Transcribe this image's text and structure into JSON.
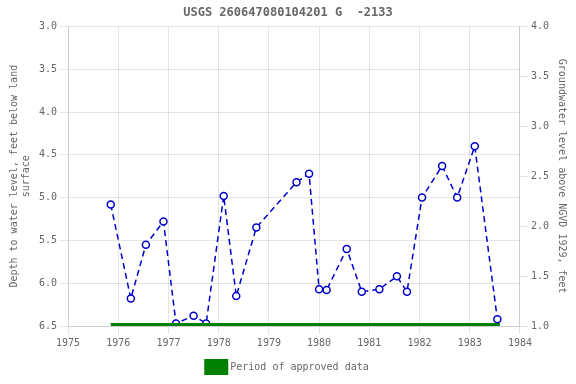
{
  "chart_data": {
    "type": "line",
    "title": "USGS 260647080104201 G  -2133",
    "y_label": "Depth to water level, feet below land\nsurface",
    "y2_label": "Groundwater level above NGVD 1929, feet",
    "x": [
      1975.85,
      1976.25,
      1976.55,
      1976.9,
      1977.15,
      1977.5,
      1977.75,
      1978.1,
      1978.35,
      1978.75,
      1979.55,
      1979.8,
      1980.0,
      1980.15,
      1980.55,
      1980.85,
      1981.2,
      1981.55,
      1981.75,
      1982.05,
      1982.45,
      1982.75,
      1983.1,
      1983.55
    ],
    "series": [
      {
        "color": "#0000cc",
        "line_style": "dashed",
        "marker": "circle",
        "values": [
          5.08,
          6.18,
          5.55,
          5.28,
          6.47,
          6.38,
          6.47,
          4.98,
          6.15,
          5.35,
          4.82,
          4.72,
          6.07,
          6.08,
          5.6,
          6.1,
          6.07,
          5.92,
          6.1,
          5.0,
          4.63,
          5.0,
          4.4,
          6.42
        ]
      }
    ],
    "period": {
      "name": "Period of approved data",
      "xstart": 1975.85,
      "xend": 1983.6,
      "y": 6.5,
      "color": "#008000"
    },
    "xlim": [
      1975,
      1984
    ],
    "xticks": [
      1975,
      1976,
      1977,
      1978,
      1979,
      1980,
      1981,
      1982,
      1983,
      1984
    ],
    "ylim": [
      6.5,
      3.0
    ],
    "yticks": [
      {
        "value": 3.0,
        "label": "3.0"
      },
      3.5,
      {
        "value": 4.0,
        "label": "4.0"
      },
      4.5,
      {
        "value": 5.0,
        "label": "5.0"
      },
      5.5,
      {
        "value": 6.0,
        "label": "6.0"
      },
      6.5
    ],
    "y2lim": [
      1.0,
      4.0
    ],
    "y2ticks": [
      {
        "value": 4.0,
        "label": "4.0"
      },
      3.5,
      {
        "value": 3.0,
        "label": "3.0"
      },
      2.5,
      {
        "value": 2.0,
        "label": "2.0"
      },
      1.5,
      {
        "value": 1.0,
        "label": "1.0"
      }
    ],
    "grid": true,
    "legend": "bottom"
  }
}
